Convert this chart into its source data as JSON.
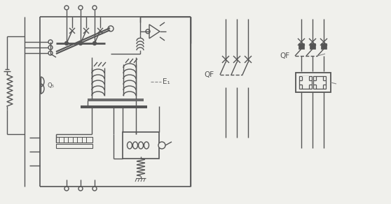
{
  "bg_color": "#f0f0ec",
  "line_color": "#555555",
  "lw": 1.0,
  "fig_width": 5.58,
  "fig_height": 2.92,
  "qf1": "QF",
  "qf2": "QF",
  "e1": "E₁",
  "q5": "Q₅"
}
